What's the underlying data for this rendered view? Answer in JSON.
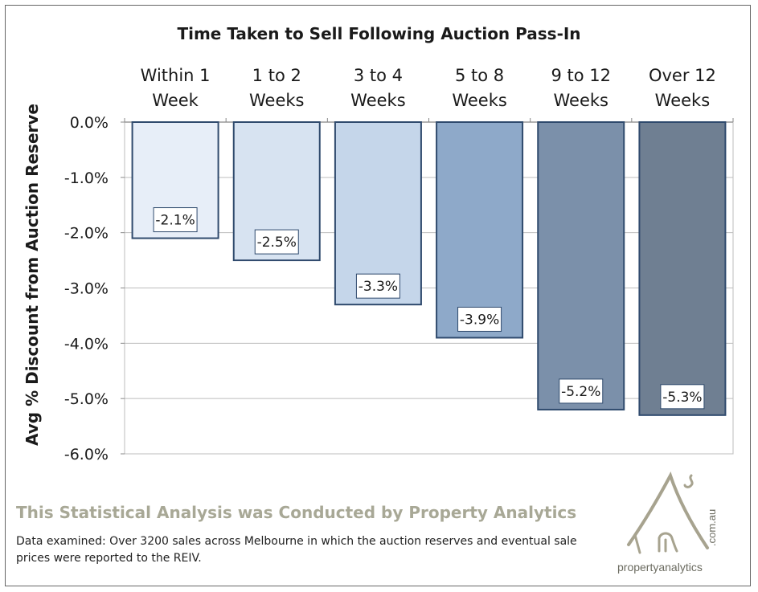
{
  "chart_data": {
    "type": "bar",
    "title": "Time Taken to Sell Following Auction Pass-In",
    "ylabel": "Avg % Discount from Auction Reserve",
    "xlabel": "",
    "categories": [
      [
        "Within 1",
        "Week"
      ],
      [
        "1 to 2",
        "Weeks"
      ],
      [
        "3 to 4",
        "Weeks"
      ],
      [
        "5 to 8",
        "Weeks"
      ],
      [
        "9 to 12",
        "Weeks"
      ],
      [
        "Over 12",
        "Weeks"
      ]
    ],
    "values": [
      -2.1,
      -2.5,
      -3.3,
      -3.9,
      -5.2,
      -5.3
    ],
    "data_labels": [
      "-2.1%",
      "-2.5%",
      "-3.3%",
      "-3.9%",
      "-5.2%",
      "-5.3%"
    ],
    "ylim": [
      -6.0,
      0.0
    ],
    "yticks": [
      0.0,
      -1.0,
      -2.0,
      -3.0,
      -4.0,
      -5.0,
      -6.0
    ],
    "ytick_labels": [
      "0.0%",
      "-1.0%",
      "-2.0%",
      "-3.0%",
      "-4.0%",
      "-5.0%",
      "-6.0%"
    ],
    "x_axis_position": "top",
    "grid": true,
    "bar_colors": [
      "#e7eef8",
      "#d7e3f1",
      "#c5d6ea",
      "#8ea9c9",
      "#7b90aa",
      "#6f7f92"
    ],
    "bar_border_color": "#2f4a6d"
  },
  "footer": {
    "heading": "This Statistical Analysis was Conducted  by Property Analytics",
    "note": "Data examined: Over 3200 sales across Melbourne in which the auction reserves and eventual sale prices were reported to the REIV."
  },
  "logo": {
    "name": "propertyanalytics",
    "domain": ".com.au",
    "icon": "house-sketch-icon"
  }
}
